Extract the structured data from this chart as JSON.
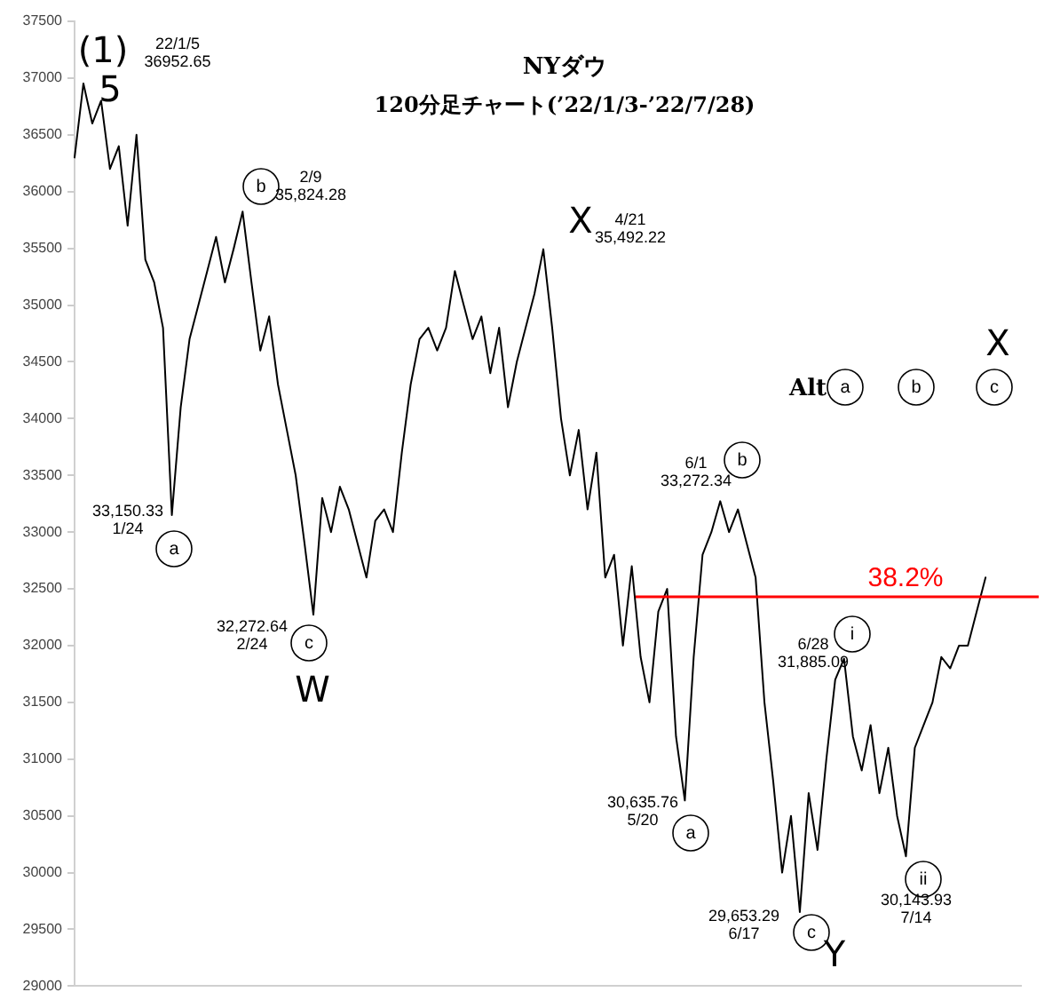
{
  "chart_data": {
    "type": "line",
    "title": "NYダウ",
    "subtitle": "120分足チャート(’22/1/3-’22/7/28)",
    "categories": [
      null,
      null,
      null,
      null,
      null,
      null,
      null,
      null,
      null,
      null,
      null,
      null,
      null,
      null,
      null,
      null,
      null,
      null,
      null,
      null,
      null,
      null,
      null,
      null,
      null,
      null,
      null,
      null,
      null,
      null,
      null,
      null,
      null,
      null,
      null,
      null,
      null,
      null,
      null,
      null,
      null,
      null,
      null,
      null,
      null,
      null,
      null,
      null,
      null,
      null,
      null,
      null,
      null,
      null,
      null,
      null,
      null,
      null,
      null,
      null,
      null,
      null,
      null,
      null,
      null,
      null,
      null,
      null,
      null,
      null,
      null,
      null,
      null,
      null,
      null,
      null,
      null,
      null,
      null,
      null,
      null,
      null,
      null,
      null,
      null,
      null,
      null,
      null,
      null,
      null,
      null,
      null,
      null,
      null,
      null,
      null,
      null,
      null,
      null,
      null,
      null,
      null,
      null,
      null,
      null,
      null,
      null,
      null
    ],
    "series": [
      {
        "color": "#000000",
        "values": [
          36300,
          36952.65,
          36600,
          36800,
          36200,
          36400,
          35700,
          36500,
          35400,
          35200,
          34800,
          33150.33,
          34100,
          34700,
          35000,
          35300,
          35600,
          35200,
          35500,
          35824.28,
          35200,
          34600,
          34900,
          34300,
          33900,
          33500,
          32900,
          32272.64,
          33300,
          33000,
          33400,
          33200,
          32900,
          32600,
          33100,
          33200,
          33000,
          33700,
          34300,
          34700,
          34800,
          34600,
          34800,
          35300,
          35000,
          34700,
          34900,
          34400,
          34800,
          34100,
          34500,
          34800,
          35100,
          35492.22,
          34800,
          34000,
          33500,
          33900,
          33200,
          33700,
          32600,
          32800,
          32000,
          32700,
          31900,
          31500,
          32300,
          32500,
          31200,
          30635.76,
          31900,
          32800,
          33000,
          33272.34,
          33000,
          33200,
          32900,
          32600,
          31500,
          30800,
          30000,
          30500,
          29653.29,
          30700,
          30200,
          31000,
          31700,
          31885.09,
          31200,
          30900,
          31300,
          30700,
          31100,
          30500,
          30143.93,
          31100,
          31300,
          31500,
          31900,
          31800,
          32000,
          32000,
          32300,
          32600,
          null,
          null,
          null,
          null
        ]
      }
    ],
    "ylim": [
      29000,
      37500
    ],
    "yticks": [
      29000,
      29500,
      30000,
      30500,
      31000,
      31500,
      32000,
      32500,
      33000,
      33500,
      34000,
      34500,
      35000,
      35500,
      36000,
      36500,
      37000,
      37500
    ],
    "tick_labels": "y",
    "grid": false,
    "legend": false,
    "marker": "none",
    "line_style": "solid",
    "ref_lines": [
      {
        "axis": "y",
        "value": 32430,
        "color": "#ff0000"
      }
    ],
    "annotations": [
      "(1)",
      "5",
      "22/1/5\n36952.65",
      "b",
      "2/9\n35,824.28",
      "X",
      "4/21\n35,492.22",
      "33,150.33\n1/24",
      "a",
      "32,272.64\n2/24",
      "c",
      "W",
      "b",
      "6/1\n33,272.34",
      "i",
      "6/28\n31,885.09",
      "Alt",
      "a",
      "b",
      "c",
      "X",
      "30,635.76\n5/20",
      "a",
      "29,653.29\n6/17",
      "c",
      "Y",
      "ii",
      "30,143.93\n7/14",
      "38.2%"
    ]
  }
}
